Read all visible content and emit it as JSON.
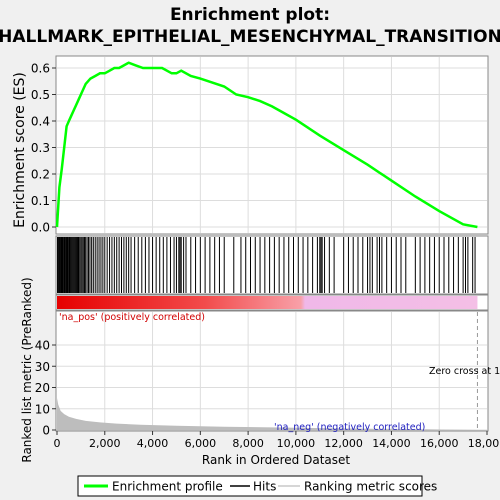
{
  "chart_data": {
    "type": "line",
    "title_line1": "Enrichment plot:",
    "title_line2": "HALLMARK_EPITHELIAL_MESENCHYMAL_TRANSITION",
    "es_ylabel": "Enrichment score (ES)",
    "metric_ylabel": "Ranked list metric (PreRanked)",
    "xlabel": "Rank in Ordered Dataset",
    "xlim": [
      0,
      18000
    ],
    "es_ylim": [
      0.0,
      0.63
    ],
    "metric_ylim": [
      0,
      50
    ],
    "x_ticks": [
      0,
      2000,
      4000,
      6000,
      8000,
      10000,
      12000,
      14000,
      16000,
      18000
    ],
    "x_tick_labels": [
      "0",
      "2,000",
      "4,000",
      "6,000",
      "8,000",
      "10,000",
      "12,000",
      "14,000",
      "16,000",
      "18,000"
    ],
    "es_ticks": [
      0.0,
      0.1,
      0.2,
      0.3,
      0.4,
      0.5,
      0.6
    ],
    "es_tick_labels": [
      "0.0",
      "0.1",
      "0.2",
      "0.3",
      "0.4",
      "0.5",
      "0.6"
    ],
    "metric_ticks": [
      0,
      10,
      20,
      30,
      40
    ],
    "metric_tick_labels": [
      "0",
      "10",
      "20",
      "30",
      "40"
    ],
    "pos_label": "'na_pos' (positively correlated)",
    "neg_label": "'na_neg' (negatively correlated)",
    "zero_cross_label": "Zero cross at 1",
    "zero_cross_x": 17600,
    "total_genes": 17600,
    "enrichment_line": {
      "name": "Enrichment profile",
      "color": "#00ff00",
      "x": [
        0,
        100,
        200,
        300,
        400,
        500,
        600,
        700,
        800,
        900,
        1000,
        1200,
        1400,
        1600,
        1800,
        2000,
        2200,
        2400,
        2600,
        2800,
        3000,
        3300,
        3600,
        4000,
        4400,
        4800,
        5000,
        5200,
        5600,
        6000,
        6500,
        7000,
        7500,
        8000,
        8500,
        9000,
        9500,
        10000,
        10500,
        11000,
        12000,
        13000,
        14000,
        15000,
        16000,
        17000,
        17600
      ],
      "y": [
        0.0,
        0.15,
        0.22,
        0.3,
        0.38,
        0.4,
        0.42,
        0.44,
        0.46,
        0.48,
        0.5,
        0.54,
        0.56,
        0.57,
        0.58,
        0.58,
        0.59,
        0.6,
        0.6,
        0.61,
        0.62,
        0.61,
        0.6,
        0.6,
        0.6,
        0.58,
        0.58,
        0.59,
        0.57,
        0.56,
        0.545,
        0.53,
        0.5,
        0.49,
        0.475,
        0.455,
        0.43,
        0.405,
        0.375,
        0.345,
        0.29,
        0.235,
        0.175,
        0.115,
        0.06,
        0.01,
        0.0
      ]
    },
    "hits": [
      20,
      60,
      100,
      130,
      170,
      200,
      230,
      260,
      300,
      330,
      370,
      400,
      440,
      470,
      510,
      540,
      580,
      620,
      660,
      700,
      740,
      780,
      820,
      860,
      900,
      950,
      1000,
      1050,
      1100,
      1150,
      1200,
      1260,
      1320,
      1380,
      1450,
      1520,
      1600,
      1680,
      1760,
      1840,
      1920,
      2000,
      2100,
      2200,
      2300,
      2400,
      2500,
      2600,
      2700,
      2800,
      2900,
      3000,
      3100,
      3250,
      3400,
      3550,
      3700,
      3850,
      4000,
      4150,
      4300,
      4450,
      4600,
      4750,
      4900,
      5000,
      5100,
      5150,
      5200,
      5300,
      5400,
      5600,
      5800,
      6000,
      6200,
      6400,
      6600,
      6800,
      7000,
      7400,
      7700,
      7900,
      8100,
      8300,
      8500,
      8700,
      8900,
      9100,
      9300,
      9500,
      9700,
      9900,
      10100,
      10300,
      10500,
      10700,
      10900,
      11000,
      11050,
      11100,
      11200,
      11400,
      11600,
      12000,
      12200,
      12400,
      12600,
      12800,
      13000,
      13100,
      13200,
      13400,
      13500,
      13600,
      13800,
      14000,
      14200,
      14400,
      14600,
      15000,
      15200,
      15400,
      15600,
      15800,
      16000,
      16200,
      16400,
      16600,
      16800,
      17000,
      17100,
      17200,
      17400,
      17500
    ],
    "metric_profile": {
      "x": [
        0,
        50,
        150,
        300,
        500,
        800,
        1200,
        1800,
        2500,
        3500,
        5000,
        7000,
        9000,
        11000,
        13000,
        15000,
        16500,
        17600
      ],
      "y": [
        15,
        12,
        9,
        7.5,
        6.2,
        5.2,
        4.3,
        3.6,
        3.0,
        2.5,
        2.0,
        1.5,
        1.2,
        0.9,
        0.6,
        0.4,
        0.2,
        0.0
      ]
    },
    "legend": {
      "enrichment": "Enrichment profile",
      "hits": "Hits",
      "metric": "Ranking metric scores"
    }
  }
}
